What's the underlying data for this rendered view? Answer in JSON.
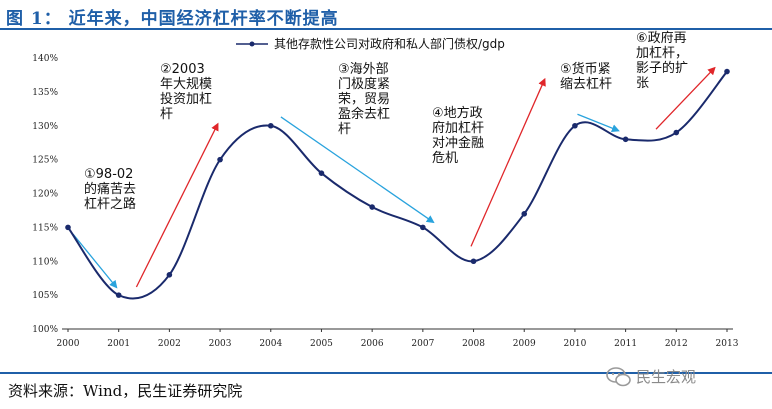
{
  "header": {
    "title": "图 1： 近年来，中国经济杠杆率不断提高"
  },
  "footer": {
    "source": "资料来源：Wind，民生证券研究院",
    "watermark": "民生宏观",
    "watermark_icon": "wechat-icon"
  },
  "colors": {
    "title": "#1f5fa8",
    "line": "#1a2a6c",
    "up_arrow": "#e0262a",
    "down_arrow": "#29a3dd"
  },
  "chart_data": {
    "type": "line",
    "title": "",
    "xlabel": "",
    "ylabel": "",
    "legend": "其他存款性公司对政府和私人部门债权/gdp",
    "legend_position": "top",
    "x": [
      "2000",
      "2001",
      "2002",
      "2003",
      "2004",
      "2005",
      "2006",
      "2007",
      "2008",
      "2009",
      "2010",
      "2011",
      "2012",
      "2013"
    ],
    "series": [
      {
        "name": "其他存款性公司对政府和私人部门债权/gdp",
        "values": [
          115,
          105,
          108,
          125,
          130,
          123,
          118,
          115,
          110,
          117,
          130,
          128,
          129,
          138
        ]
      }
    ],
    "ylim": [
      100,
      140
    ],
    "yticks": [
      "100%",
      "105%",
      "110%",
      "115%",
      "120%",
      "125%",
      "130%",
      "135%",
      "140%"
    ],
    "grid": false,
    "annotations": [
      {
        "lines": [
          "①98-02",
          "的痛苦去",
          "杠杆之路"
        ],
        "trend": "down",
        "from": [
          2000.1,
          114
        ],
        "to": [
          2000.95,
          106.2
        ]
      },
      {
        "lines": [
          "②2003",
          "年大规模",
          "投资加杠",
          "杆"
        ],
        "trend": "up",
        "from": [
          2001.35,
          106.2
        ],
        "to": [
          2002.95,
          130.2
        ]
      },
      {
        "lines": [
          "③海外部",
          "门极度紧",
          "荣，贸易",
          "盈余去杠",
          "杆"
        ],
        "trend": "down",
        "from": [
          2004.2,
          131.3
        ],
        "to": [
          2007.2,
          115.8
        ]
      },
      {
        "lines": [
          "④地方政",
          "府加杠杆",
          "对冲金融",
          "危机"
        ],
        "trend": "up",
        "from": [
          2007.95,
          112.2
        ],
        "to": [
          2009.4,
          136.8
        ]
      },
      {
        "lines": [
          "⑤货币紧",
          "缩去杠杆"
        ],
        "trend": "down",
        "from": [
          2010.05,
          131.7
        ],
        "to": [
          2010.85,
          129.3
        ]
      },
      {
        "lines": [
          "⑥政府再",
          "加杠杆，",
          "影子的扩",
          "张"
        ],
        "trend": "up",
        "from": [
          2011.6,
          129.5
        ],
        "to": [
          2012.75,
          138.5
        ]
      }
    ]
  }
}
